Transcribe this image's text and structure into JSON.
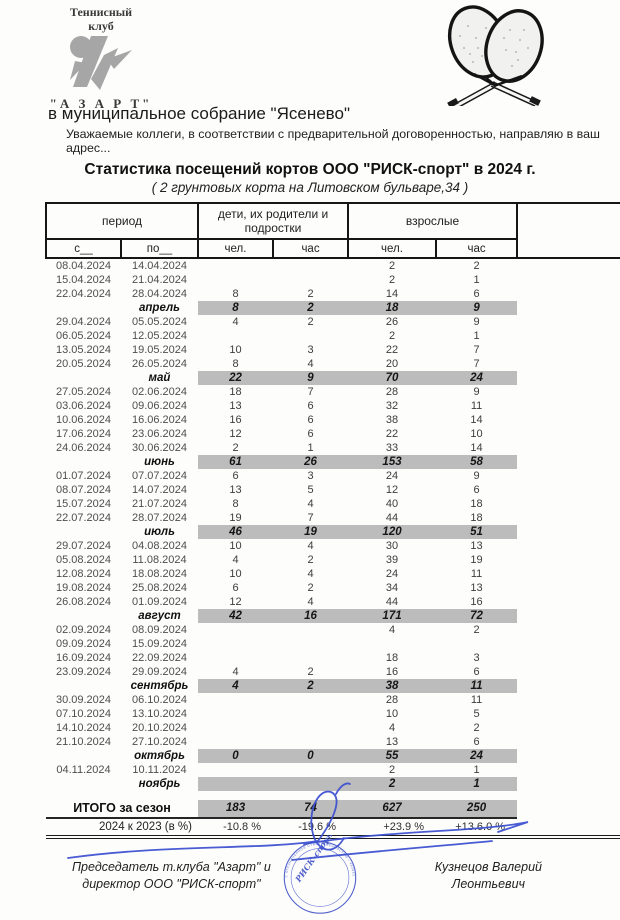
{
  "header": {
    "club_word1": "Теннисный",
    "club_word2": "клуб",
    "club_name": "\"А З А Р Т\"",
    "address_line": "в муниципальное собрание \"Ясенево\"",
    "intro_line": "Уважаемые коллеги, в соответствии с предварительной договоренностью, направляю в ваш адрес...",
    "title": "Статистика посещений кортов ООО \"РИСК-спорт\" в 2024 г.",
    "subtitle": "( 2 грунтовых корта на Литовском бульваре,34 )"
  },
  "table": {
    "col_groups": [
      "период",
      "дети, их родители и подростки",
      "взрослые"
    ],
    "sub_headers": [
      "с__",
      "по__",
      "чел.",
      "час",
      "чел.",
      "час"
    ],
    "rows": [
      {
        "t": "d",
        "c": [
          "08.04.2024",
          "14.04.2024",
          "",
          "",
          "2",
          "2"
        ]
      },
      {
        "t": "d",
        "c": [
          "15.04.2024",
          "21.04.2024",
          "",
          "",
          "2",
          "1"
        ]
      },
      {
        "t": "d",
        "c": [
          "22.04.2024",
          "28.04.2024",
          "8",
          "2",
          "14",
          "6"
        ]
      },
      {
        "t": "m",
        "c": [
          "",
          "апрель",
          "8",
          "2",
          "18",
          "9"
        ]
      },
      {
        "t": "d",
        "c": [
          "29.04.2024",
          "05.05.2024",
          "4",
          "2",
          "26",
          "9"
        ]
      },
      {
        "t": "d",
        "c": [
          "06.05.2024",
          "12.05.2024",
          "",
          "",
          "2",
          "1"
        ]
      },
      {
        "t": "d",
        "c": [
          "13.05.2024",
          "19.05.2024",
          "10",
          "3",
          "22",
          "7"
        ]
      },
      {
        "t": "d",
        "c": [
          "20.05.2024",
          "26.05.2024",
          "8",
          "4",
          "20",
          "7"
        ]
      },
      {
        "t": "m",
        "c": [
          "",
          "май",
          "22",
          "9",
          "70",
          "24"
        ]
      },
      {
        "t": "d",
        "c": [
          "27.05.2024",
          "02.06.2024",
          "18",
          "7",
          "28",
          "9"
        ]
      },
      {
        "t": "d",
        "c": [
          "03.06.2024",
          "09.06.2024",
          "13",
          "6",
          "32",
          "11"
        ]
      },
      {
        "t": "d",
        "c": [
          "10.06.2024",
          "16.06.2024",
          "16",
          "6",
          "38",
          "14"
        ]
      },
      {
        "t": "d",
        "c": [
          "17.06.2024",
          "23.06.2024",
          "12",
          "6",
          "22",
          "10"
        ]
      },
      {
        "t": "d",
        "c": [
          "24.06.2024",
          "30.06.2024",
          "2",
          "1",
          "33",
          "14"
        ]
      },
      {
        "t": "m",
        "c": [
          "",
          "июнь",
          "61",
          "26",
          "153",
          "58"
        ]
      },
      {
        "t": "d",
        "c": [
          "01.07.2024",
          "07.07.2024",
          "6",
          "3",
          "24",
          "9"
        ]
      },
      {
        "t": "d",
        "c": [
          "08.07.2024",
          "14.07.2024",
          "13",
          "5",
          "12",
          "6"
        ]
      },
      {
        "t": "d",
        "c": [
          "15.07.2024",
          "21.07.2024",
          "8",
          "4",
          "40",
          "18"
        ]
      },
      {
        "t": "d",
        "c": [
          "22.07.2024",
          "28.07.2024",
          "19",
          "7",
          "44",
          "18"
        ]
      },
      {
        "t": "m",
        "c": [
          "",
          "июль",
          "46",
          "19",
          "120",
          "51"
        ]
      },
      {
        "t": "d",
        "c": [
          "29.07.2024",
          "04.08.2024",
          "10",
          "4",
          "30",
          "13"
        ]
      },
      {
        "t": "d",
        "c": [
          "05.08.2024",
          "11.08.2024",
          "4",
          "2",
          "39",
          "19"
        ]
      },
      {
        "t": "d",
        "c": [
          "12.08.2024",
          "18.08.2024",
          "10",
          "4",
          "24",
          "11"
        ]
      },
      {
        "t": "d",
        "c": [
          "19.08.2024",
          "25.08.2024",
          "6",
          "2",
          "34",
          "13"
        ]
      },
      {
        "t": "d",
        "c": [
          "26.08.2024",
          "01.09.2024",
          "12",
          "4",
          "44",
          "16"
        ]
      },
      {
        "t": "m",
        "c": [
          "",
          "август",
          "42",
          "16",
          "171",
          "72"
        ]
      },
      {
        "t": "d",
        "c": [
          "02.09.2024",
          "08.09.2024",
          "",
          "",
          "4",
          "2"
        ]
      },
      {
        "t": "d",
        "c": [
          "09.09.2024",
          "15.09.2024",
          "",
          "",
          "",
          ""
        ]
      },
      {
        "t": "d",
        "c": [
          "16.09.2024",
          "22.09.2024",
          "",
          "",
          "18",
          "3"
        ]
      },
      {
        "t": "d",
        "c": [
          "23.09.2024",
          "29.09.2024",
          "4",
          "2",
          "16",
          "6"
        ]
      },
      {
        "t": "m",
        "c": [
          "",
          "сентябрь",
          "4",
          "2",
          "38",
          "11"
        ]
      },
      {
        "t": "d",
        "c": [
          "30.09.2024",
          "06.10.2024",
          "",
          "",
          "28",
          "11"
        ]
      },
      {
        "t": "d",
        "c": [
          "07.10.2024",
          "13.10.2024",
          "",
          "",
          "10",
          "5"
        ]
      },
      {
        "t": "d",
        "c": [
          "14.10.2024",
          "20.10.2024",
          "",
          "",
          "4",
          "2"
        ]
      },
      {
        "t": "d",
        "c": [
          "21.10.2024",
          "27.10.2024",
          "",
          "",
          "13",
          "6"
        ]
      },
      {
        "t": "m",
        "c": [
          "",
          "октябрь",
          "0",
          "0",
          "55",
          "24"
        ]
      },
      {
        "t": "d",
        "c": [
          "04.11.2024",
          "10.11.2024",
          "",
          "",
          "2",
          "1"
        ]
      },
      {
        "t": "m",
        "c": [
          "",
          "ноябрь",
          "",
          "",
          "2",
          "1"
        ]
      }
    ],
    "total": {
      "label": "ИТОГО за сезон",
      "values": [
        "183",
        "74",
        "627",
        "250"
      ]
    },
    "comparison": {
      "label": "2024 к 2023 (в %)",
      "values": [
        "-10.8 %",
        "-19.6 %",
        "+23.9 %",
        "+13.6.0 %"
      ]
    }
  },
  "footer": {
    "left_line1": "Председатель т.клуба \"Азарт\" и",
    "left_line2": "директор ООО \"РИСК-спорт\"",
    "right_line1": "Кузнецов Валерий",
    "right_line2": "Леонтьевич",
    "stamp_ring_text": "С ОГРАНИЧЕННОЙ ОТВЕТСТВЕННОСТЬЮ • 483853",
    "stamp_center_text": "РИСК-спорт"
  },
  "colors": {
    "summary_bar_gray": "#bcbcbc",
    "stamp_blue": "#3f52c6",
    "logo_gray": "#a6a6a6"
  }
}
